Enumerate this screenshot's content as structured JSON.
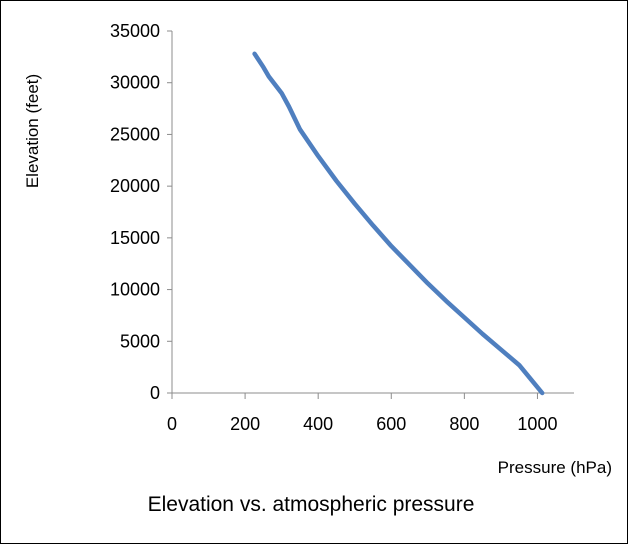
{
  "chart_data": {
    "type": "line",
    "title": "Elevation vs. atmospheric pressure",
    "xlabel": "Pressure (hPa)",
    "ylabel": "Elevation (feet)",
    "xlim": [
      0,
      1100
    ],
    "ylim": [
      0,
      35000
    ],
    "x_ticks": [
      "0",
      "200",
      "400",
      "600",
      "800",
      "1000"
    ],
    "y_ticks": [
      "0",
      "5000",
      "10000",
      "15000",
      "20000",
      "25000",
      "30000",
      "35000"
    ],
    "grid": false,
    "legend": "none",
    "series": [
      {
        "color": "#4f7fbf",
        "x": [
          226,
          250,
          265,
          300,
          320,
          350,
          400,
          450,
          500,
          550,
          600,
          650,
          700,
          750,
          800,
          850,
          900,
          950,
          1013
        ],
        "y": [
          32800,
          31500,
          30600,
          29000,
          27700,
          25500,
          22900,
          20500,
          18300,
          16200,
          14200,
          12400,
          10600,
          8900,
          7300,
          5700,
          4200,
          2700,
          0
        ]
      }
    ]
  }
}
